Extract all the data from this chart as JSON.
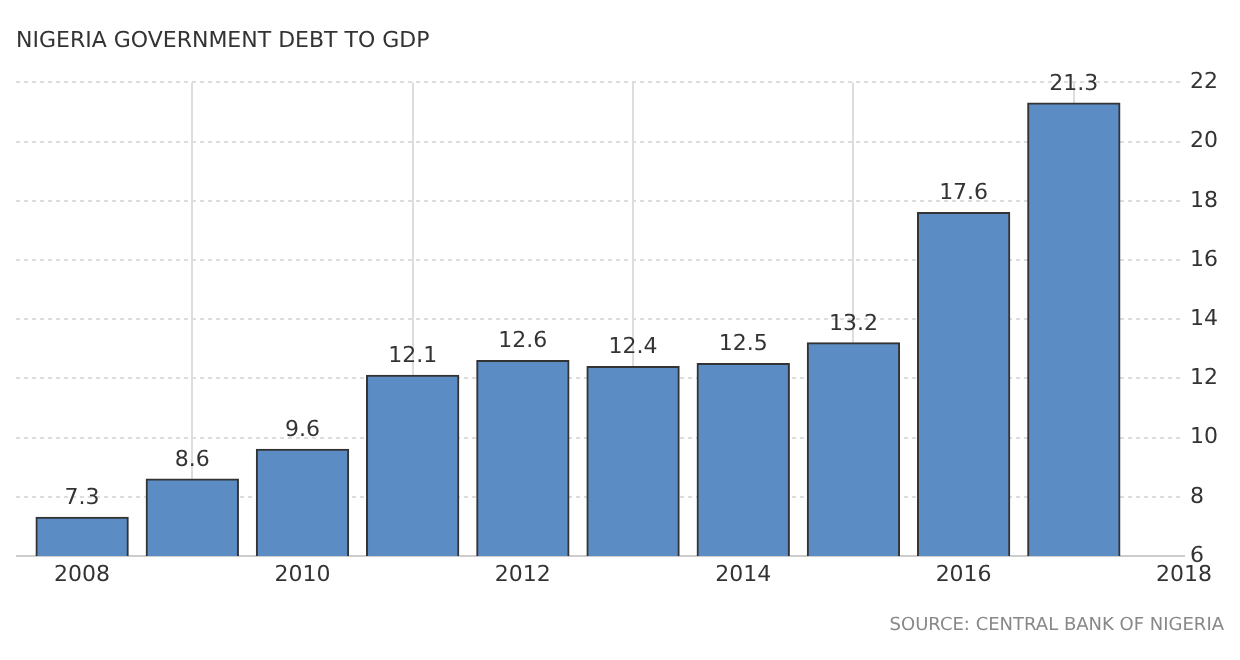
{
  "chart_data": {
    "type": "bar",
    "title": "NIGERIA GOVERNMENT DEBT TO GDP",
    "x": [
      2008,
      2009,
      2010,
      2011,
      2012,
      2013,
      2014,
      2015,
      2016,
      2017
    ],
    "values": [
      7.3,
      8.6,
      9.6,
      12.1,
      12.6,
      12.4,
      12.5,
      13.2,
      17.6,
      21.3
    ],
    "color": "#5b8cc4",
    "xlim": [
      2007.4,
      2018
    ],
    "xticks": [
      2008,
      2010,
      2012,
      2014,
      2016,
      2018
    ],
    "ylim": [
      6,
      22
    ],
    "yticks": [
      6,
      8,
      10,
      12,
      14,
      16,
      18,
      20,
      22
    ],
    "grid": true,
    "data_labels": true,
    "legend": false,
    "annotations": [
      "SOURCE: CENTRAL BANK OF NIGERIA"
    ]
  }
}
